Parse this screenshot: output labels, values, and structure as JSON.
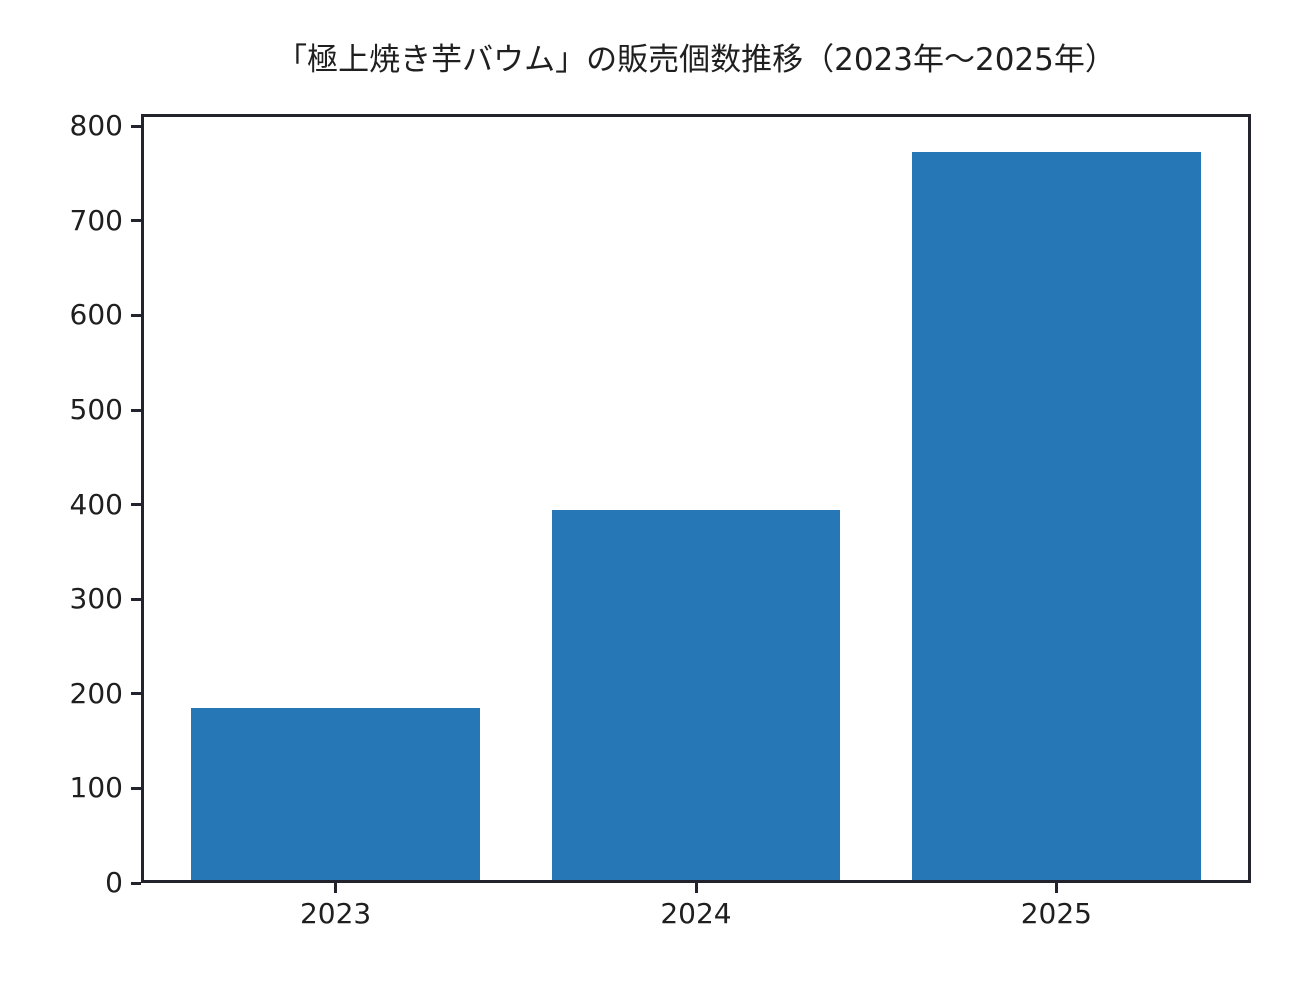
{
  "chart_data": {
    "type": "bar",
    "title": "「極上焼き芋バウム」の販売個数推移（2023年～2025年）",
    "categories": [
      "2023",
      "2024",
      "2025"
    ],
    "values": [
      185,
      394,
      773
    ],
    "xlabel": "",
    "ylabel": "",
    "ylim": [
      0,
      813
    ],
    "yticks": [
      0,
      100,
      200,
      300,
      400,
      500,
      600,
      700,
      800
    ],
    "bar_color": "#2578b5",
    "axis_color": "#23232e",
    "text_color": "#1f1f1f",
    "background_color": "#ffffff",
    "grid": false,
    "legend": null,
    "bar_width_fraction": 0.8
  }
}
